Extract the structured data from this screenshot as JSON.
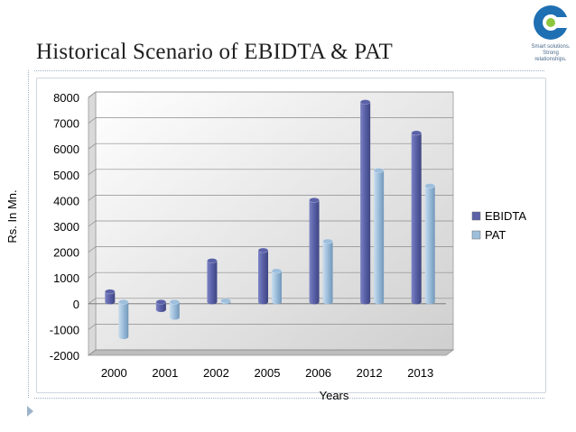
{
  "slide": {
    "title": "Historical Scenario of EBIDTA & PAT",
    "logo_tagline": "Smart solutions. Strong relationships."
  },
  "chart_data": {
    "type": "bar",
    "title": "",
    "xlabel": "Years",
    "ylabel": "Rs. In Mn.",
    "categories": [
      "2000",
      "2001",
      "2002",
      "2005",
      "2006",
      "2012",
      "2013"
    ],
    "series": [
      {
        "name": "EBIDTA",
        "values": [
          400,
          -300,
          1600,
          2000,
          3950,
          7750,
          6550
        ],
        "color": "#5b62a8"
      },
      {
        "name": "PAT",
        "values": [
          -1350,
          -600,
          50,
          1200,
          2350,
          5100,
          4500
        ],
        "color": "#9ebfdc"
      }
    ],
    "ylim": [
      -2000,
      8000
    ],
    "yticks": [
      -2000,
      -1000,
      0,
      1000,
      2000,
      3000,
      4000,
      5000,
      6000,
      7000,
      8000
    ],
    "grid": true,
    "legend_position": "right"
  },
  "colors": {
    "logo_blue": "#1f6fb3",
    "logo_green": "#8cc63f"
  }
}
